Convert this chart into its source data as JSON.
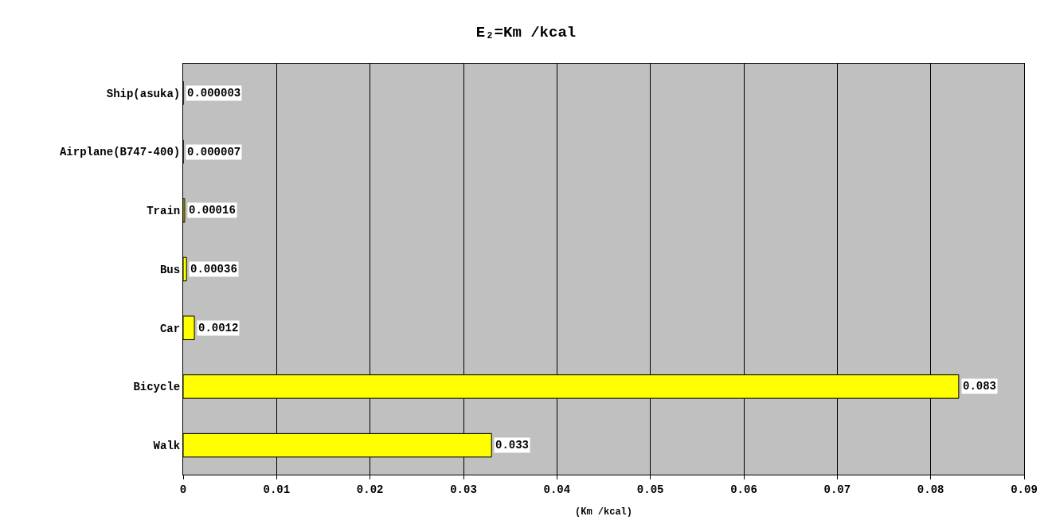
{
  "chart_data": {
    "type": "bar",
    "orientation": "horizontal",
    "title": "E₂=Km /kcal",
    "xlabel": "(Km /kcal)",
    "categories": [
      "Ship(asuka)",
      "Airplane(B747-400)",
      "Train",
      "Bus",
      "Car",
      "Bicycle",
      "Walk"
    ],
    "values": [
      3e-06,
      7e-06,
      0.00016,
      0.00036,
      0.0012,
      0.083,
      0.033
    ],
    "value_labels": [
      "0.000003",
      "0.000007",
      "0.00016",
      "0.00036",
      "0.0012",
      "0.083",
      "0.033"
    ],
    "color": "#ffff00",
    "xlim": [
      0,
      0.09
    ],
    "xticks": [
      0,
      0.01,
      0.02,
      0.03,
      0.04,
      0.05,
      0.06,
      0.07,
      0.08,
      0.09
    ],
    "grid": "x"
  }
}
